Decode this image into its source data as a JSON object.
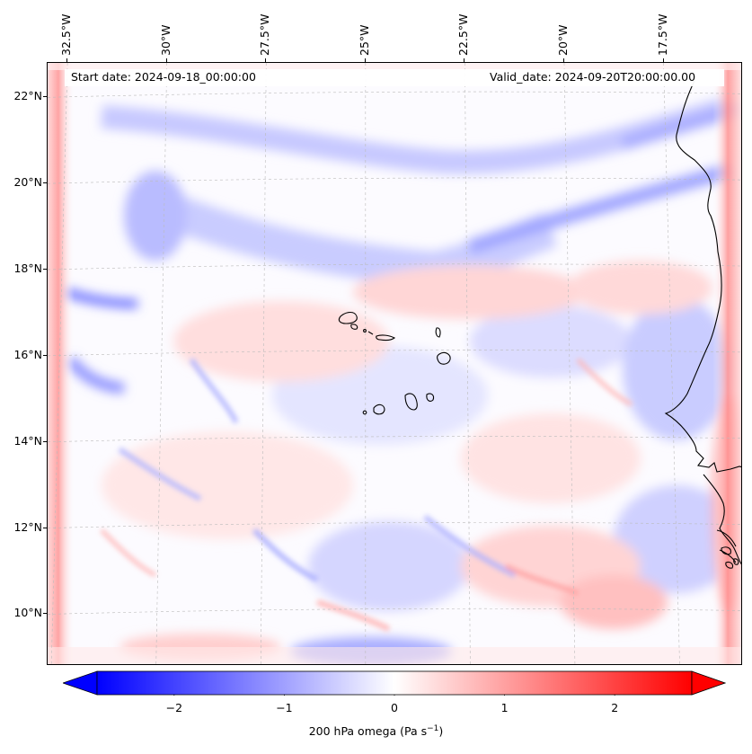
{
  "map": {
    "start_date_text": "Start date: 2024-09-18_00:00:00",
    "valid_date_text": "Valid_date: 2024-09-20T20:00:00.00",
    "lon_range": [
      -33.0,
      -15.5
    ],
    "lat_range": [
      8.8,
      22.8
    ],
    "longitude_labels": [
      {
        "value": -32.5,
        "text": "32.5°W"
      },
      {
        "value": -30.0,
        "text": "30°W"
      },
      {
        "value": -27.5,
        "text": "27.5°W"
      },
      {
        "value": -25.0,
        "text": "25°W"
      },
      {
        "value": -22.5,
        "text": "22.5°W"
      },
      {
        "value": -20.0,
        "text": "20°W"
      },
      {
        "value": -17.5,
        "text": "17.5°W"
      }
    ],
    "latitude_labels": [
      {
        "value": 10,
        "text": "10°N"
      },
      {
        "value": 12,
        "text": "12°N"
      },
      {
        "value": 14,
        "text": "14°N"
      },
      {
        "value": 16,
        "text": "16°N"
      },
      {
        "value": 18,
        "text": "18°N"
      },
      {
        "value": 20,
        "text": "20°N"
      },
      {
        "value": 22,
        "text": "22°N"
      }
    ],
    "gridlines": true,
    "colors": {
      "coastline": "#000000",
      "gridline": "#bbbbbb",
      "positive": "#ff0000",
      "negative": "#0000ff",
      "neutral": "#ffffff"
    }
  },
  "colorbar": {
    "label": "200 hPa omega (Pa s",
    "label_superscript": "−1",
    "label_close": ")",
    "range": [
      -2.7,
      2.7
    ],
    "extend": "both",
    "ticks": [
      {
        "value": -2,
        "text": "−2"
      },
      {
        "value": -1,
        "text": "−1"
      },
      {
        "value": 0,
        "text": "0"
      },
      {
        "value": 1,
        "text": "1"
      },
      {
        "value": 2,
        "text": "2"
      }
    ]
  }
}
